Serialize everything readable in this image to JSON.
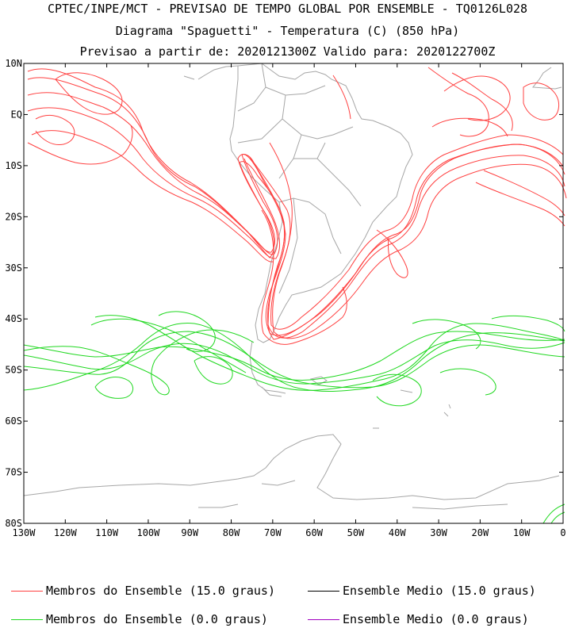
{
  "header": {
    "line1": "CPTEC/INPE/MCT - PREVISAO DE TEMPO GLOBAL POR ENSEMBLE - TQ0126L028",
    "line2": "Diagrama \"Spaguetti\" - Temperatura (C) (850 hPa)",
    "line3": "Previsao a partir de: 2020121300Z  Valido para: 2020122700Z"
  },
  "map": {
    "lat_labels": [
      "10N",
      "EQ",
      "10S",
      "20S",
      "30S",
      "40S",
      "50S",
      "60S",
      "70S",
      "80S"
    ],
    "lon_labels": [
      "130W",
      "120W",
      "110W",
      "100W",
      "90W",
      "80W",
      "70W",
      "60W",
      "50W",
      "40W",
      "30W",
      "20W",
      "10W",
      "0"
    ],
    "lat_range": [
      10,
      -80
    ],
    "lon_range": [
      -130,
      0
    ],
    "colors": {
      "land_outline": "#a6a6a6",
      "member_15": "#ff4040",
      "member_0": "#20d820",
      "mean_15": "#000000",
      "mean_0": "#a000c0"
    }
  },
  "legend": [
    {
      "label": "Membros do Ensemble (15.0 graus)",
      "color": "#ff4040"
    },
    {
      "label": "Ensemble Medio (15.0 graus)",
      "color": "#000000"
    },
    {
      "label": "Membros do Ensemble (0.0 graus)",
      "color": "#20d820"
    },
    {
      "label": "Ensemble Medio (0.0 graus)",
      "color": "#a000c0"
    }
  ]
}
